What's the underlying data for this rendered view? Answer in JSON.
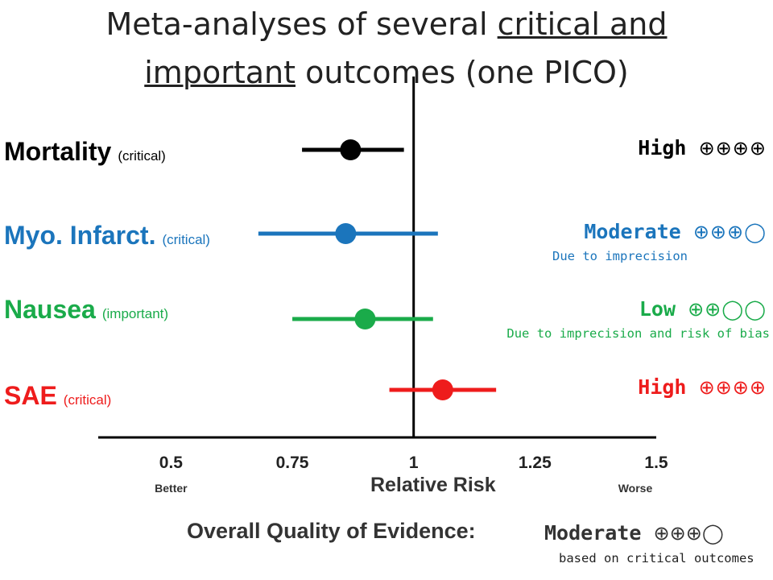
{
  "title": {
    "line1_plain": "Meta-analyses of several ",
    "line1_underlined": "critical and",
    "line2_underlined": "important",
    "line2_plain": " outcomes (one PICO)"
  },
  "outcomes": [
    {
      "name": "Mortality",
      "importance": "(critical)",
      "color": "#000000",
      "grade": "High",
      "grade_symbols": "⊕⊕⊕⊕",
      "note": ""
    },
    {
      "name": "Myo. Infarct.",
      "importance": "(critical)",
      "color": "#1b75bc",
      "grade": "Moderate",
      "grade_symbols": "⊕⊕⊕◯",
      "note": "Due to imprecision"
    },
    {
      "name": "Nausea",
      "importance": "(important)",
      "color": "#1aab4a",
      "grade": "Low",
      "grade_symbols": "⊕⊕◯◯",
      "note": "Due to imprecision and risk of bias"
    },
    {
      "name": "SAE",
      "importance": "(critical)",
      "color": "#ee1c1c",
      "grade": "High",
      "grade_symbols": "⊕⊕⊕⊕",
      "note": ""
    }
  ],
  "overall": {
    "label": "Overall Quality of Evidence:",
    "grade": "Moderate",
    "grade_symbols": "⊕⊕⊕◯",
    "note": "based on critical outcomes"
  },
  "chart_data": {
    "type": "scatter",
    "xlabel": "Relative Risk",
    "x_left_label": "Better",
    "x_right_label": "Worse",
    "xlim": [
      0.35,
      1.5
    ],
    "reference_line": 1,
    "ticks": [
      0.5,
      0.75,
      1,
      1.25,
      1.5
    ],
    "tick_labels": [
      "0.5",
      "0.75",
      "1",
      "1.25",
      "1.5"
    ],
    "series": [
      {
        "name": "Mortality",
        "point": 0.87,
        "ci": [
          0.77,
          0.98
        ]
      },
      {
        "name": "Myo. Infarct.",
        "point": 0.86,
        "ci": [
          0.68,
          1.05
        ]
      },
      {
        "name": "Nausea",
        "point": 0.9,
        "ci": [
          0.75,
          1.04
        ]
      },
      {
        "name": "SAE",
        "point": 1.06,
        "ci": [
          0.95,
          1.17
        ]
      }
    ]
  }
}
